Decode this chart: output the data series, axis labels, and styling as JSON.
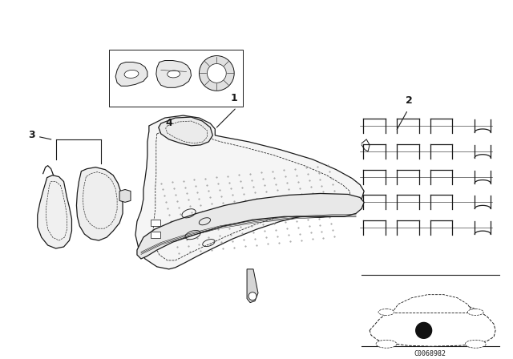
{
  "bg_color": "#ffffff",
  "diagram_code": "C0068982",
  "line_color": "#1a1a1a",
  "line_width": 0.9,
  "label_fontsize": 9
}
